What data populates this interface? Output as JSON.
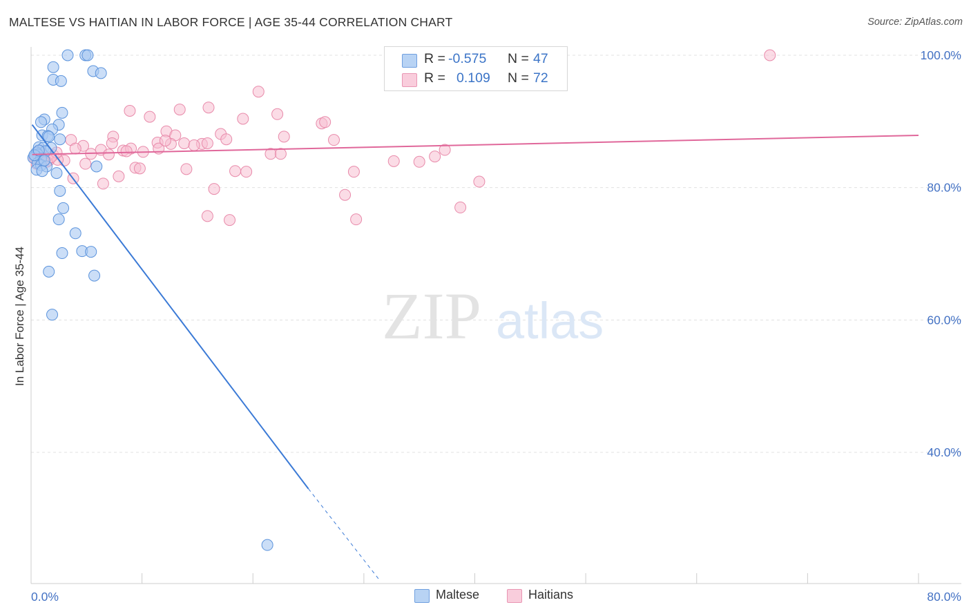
{
  "title": "MALTESE VS HAITIAN IN LABOR FORCE | AGE 35-44 CORRELATION CHART",
  "source": "Source: ZipAtlas.com",
  "watermark": {
    "zip": "ZIP",
    "atlas": "atlas"
  },
  "colors": {
    "maltese_fill": "#a9c8f2",
    "maltese_stroke": "#5b93dc",
    "maltese_line": "#3b7ad6",
    "haitian_fill": "#f7bfd2",
    "haitian_stroke": "#e88aaa",
    "haitian_line": "#e0679a",
    "tick_text": "#4472c4",
    "grid": "#e0e0e0"
  },
  "legend": {
    "rows": [
      {
        "r_label": "R =",
        "r_value": "-0.575",
        "n_label": "N =",
        "n_value": "47"
      },
      {
        "r_label": "R =",
        "r_value": "0.109",
        "n_label": "N =",
        "n_value": "72"
      }
    ]
  },
  "chart_data": {
    "type": "scatter",
    "title": "MALTESE VS HAITIAN IN LABOR FORCE | AGE 35-44 CORRELATION CHART",
    "xlabel": "",
    "ylabel": "In Labor Force | Age 35-44",
    "xlim": [
      0,
      80
    ],
    "ylim": [
      20.5,
      103
    ],
    "x_tick_labels": [
      "0.0%",
      "80.0%"
    ],
    "y_ticks": [
      40,
      60,
      80,
      100
    ],
    "y_tick_labels": [
      "40.0%",
      "60.0%",
      "80.0%",
      "100.0%"
    ],
    "grid": true,
    "legend_position": "bottom-center",
    "series": [
      {
        "name": "Maltese",
        "r": -0.575,
        "n": 47,
        "trend": {
          "x0": 0.1,
          "y0": 89.5,
          "x1": 25.0,
          "y1": 34.5,
          "dash_to_x": 31.5,
          "dash_to_y": 20.5
        },
        "points": [
          [
            3.3,
            100.0
          ],
          [
            4.9,
            100.0
          ],
          [
            5.1,
            100.0
          ],
          [
            2.0,
            98.2
          ],
          [
            5.6,
            97.6
          ],
          [
            6.3,
            97.3
          ],
          [
            2.0,
            96.3
          ],
          [
            2.7,
            96.1
          ],
          [
            2.8,
            91.3
          ],
          [
            1.2,
            90.3
          ],
          [
            0.9,
            89.9
          ],
          [
            2.5,
            89.5
          ],
          [
            1.9,
            88.8
          ],
          [
            1.0,
            87.9
          ],
          [
            1.5,
            87.8
          ],
          [
            1.6,
            87.7
          ],
          [
            2.6,
            87.3
          ],
          [
            0.7,
            86.1
          ],
          [
            1.1,
            86.0
          ],
          [
            1.8,
            86.0
          ],
          [
            1.3,
            85.5
          ],
          [
            0.5,
            85.3
          ],
          [
            0.6,
            85.0
          ],
          [
            0.4,
            84.8
          ],
          [
            0.2,
            84.5
          ],
          [
            0.9,
            84.4
          ],
          [
            0.6,
            83.7
          ],
          [
            0.9,
            83.4
          ],
          [
            1.4,
            83.2
          ],
          [
            5.9,
            83.2
          ],
          [
            0.5,
            82.7
          ],
          [
            1.0,
            82.5
          ],
          [
            2.3,
            82.2
          ],
          [
            2.6,
            79.5
          ],
          [
            2.9,
            76.9
          ],
          [
            2.5,
            75.2
          ],
          [
            4.0,
            73.1
          ],
          [
            2.8,
            70.1
          ],
          [
            4.6,
            70.4
          ],
          [
            5.4,
            70.3
          ],
          [
            1.6,
            67.3
          ],
          [
            5.7,
            66.7
          ],
          [
            1.9,
            60.8
          ],
          [
            21.3,
            26.0
          ],
          [
            0.3,
            84.9
          ],
          [
            0.7,
            85.6
          ],
          [
            1.2,
            84.1
          ]
        ]
      },
      {
        "name": "Haitians",
        "r": 0.109,
        "n": 72,
        "trend": {
          "x0": 0.1,
          "y0": 85.0,
          "x1": 80.0,
          "y1": 87.9
        },
        "points": [
          [
            66.6,
            100.0
          ],
          [
            20.5,
            94.5
          ],
          [
            16.0,
            92.1
          ],
          [
            8.9,
            91.6
          ],
          [
            22.2,
            91.1
          ],
          [
            13.4,
            91.8
          ],
          [
            10.7,
            90.7
          ],
          [
            19.1,
            90.4
          ],
          [
            26.2,
            89.7
          ],
          [
            12.2,
            88.5
          ],
          [
            13.0,
            87.9
          ],
          [
            17.1,
            88.1
          ],
          [
            7.4,
            87.7
          ],
          [
            22.8,
            87.7
          ],
          [
            3.6,
            87.2
          ],
          [
            17.6,
            87.3
          ],
          [
            27.3,
            87.2
          ],
          [
            11.4,
            86.8
          ],
          [
            7.3,
            86.7
          ],
          [
            12.6,
            86.6
          ],
          [
            13.8,
            86.7
          ],
          [
            15.4,
            86.6
          ],
          [
            15.9,
            86.7
          ],
          [
            4.7,
            86.3
          ],
          [
            4.0,
            85.9
          ],
          [
            6.3,
            85.7
          ],
          [
            8.3,
            85.6
          ],
          [
            9.0,
            85.9
          ],
          [
            11.5,
            85.9
          ],
          [
            14.7,
            86.4
          ],
          [
            10.1,
            85.4
          ],
          [
            8.6,
            85.5
          ],
          [
            7.0,
            85.0
          ],
          [
            5.4,
            85.1
          ],
          [
            2.0,
            84.9
          ],
          [
            1.6,
            84.1
          ],
          [
            3.0,
            84.1
          ],
          [
            21.6,
            85.1
          ],
          [
            22.5,
            85.1
          ],
          [
            37.3,
            85.7
          ],
          [
            36.4,
            84.7
          ],
          [
            35.0,
            83.9
          ],
          [
            32.7,
            84.0
          ],
          [
            4.9,
            83.6
          ],
          [
            9.4,
            83.0
          ],
          [
            9.8,
            82.9
          ],
          [
            14.0,
            82.8
          ],
          [
            18.4,
            82.5
          ],
          [
            19.4,
            82.4
          ],
          [
            29.1,
            82.4
          ],
          [
            7.9,
            81.7
          ],
          [
            3.8,
            81.4
          ],
          [
            6.5,
            80.6
          ],
          [
            40.4,
            80.9
          ],
          [
            16.5,
            79.8
          ],
          [
            28.3,
            78.9
          ],
          [
            38.7,
            77.0
          ],
          [
            15.9,
            75.7
          ],
          [
            17.9,
            75.1
          ],
          [
            29.3,
            75.2
          ],
          [
            1.0,
            84.3
          ],
          [
            1.4,
            83.9
          ],
          [
            0.6,
            84.7
          ],
          [
            0.3,
            84.5
          ],
          [
            2.4,
            84.2
          ],
          [
            2.3,
            85.3
          ],
          [
            1.8,
            84.6
          ],
          [
            1.1,
            84.0
          ],
          [
            0.8,
            85.6
          ],
          [
            0.5,
            83.6
          ],
          [
            26.5,
            89.9
          ],
          [
            12.1,
            87.1
          ]
        ]
      }
    ]
  }
}
